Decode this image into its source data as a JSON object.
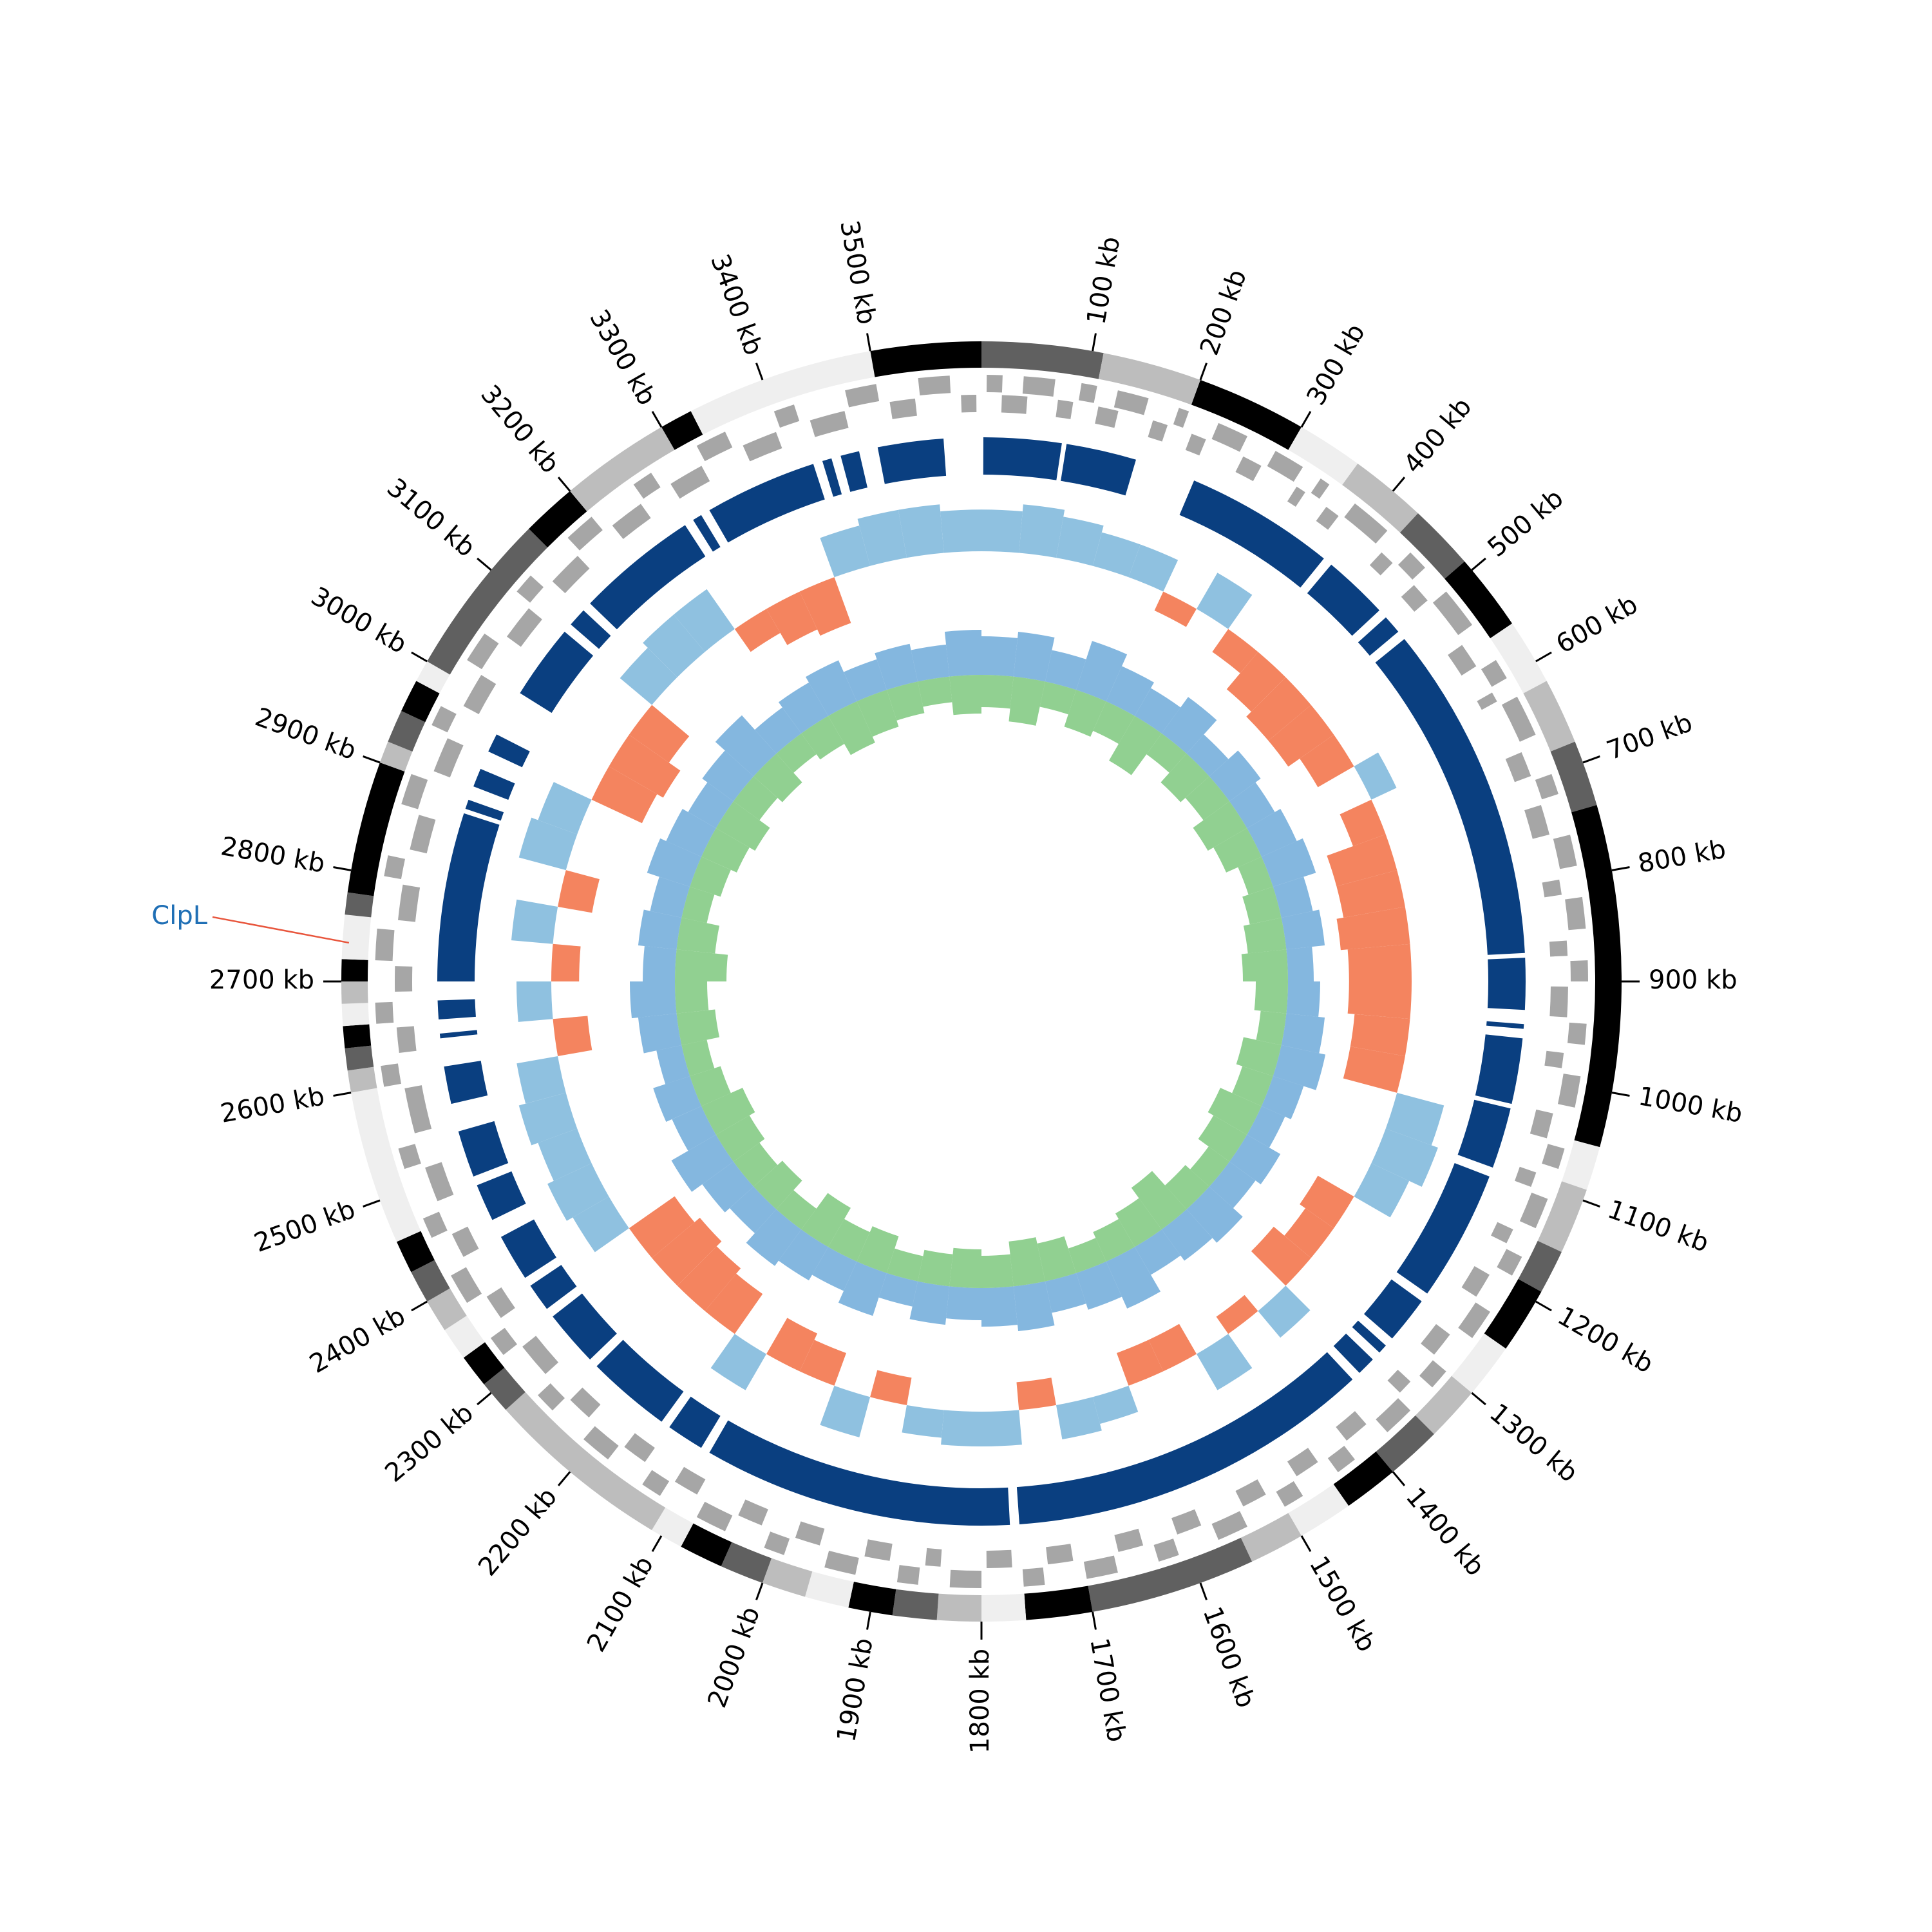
{
  "chart_data": {
    "type": "circos",
    "xlim": [
      0,
      3600
    ],
    "xticks": [
      {
        "value": 100,
        "label": "100 kb"
      },
      {
        "value": 200,
        "label": "200 kb"
      },
      {
        "value": 300,
        "label": "300 kb"
      },
      {
        "value": 400,
        "label": "400 kb"
      },
      {
        "value": 500,
        "label": "500 kb"
      },
      {
        "value": 600,
        "label": "600 kb"
      },
      {
        "value": 700,
        "label": "700 kb"
      },
      {
        "value": 800,
        "label": "800 kb"
      },
      {
        "value": 900,
        "label": "900 kb"
      },
      {
        "value": 1000,
        "label": "1000 kb"
      },
      {
        "value": 1100,
        "label": "1100 kb"
      },
      {
        "value": 1200,
        "label": "1200 kb"
      },
      {
        "value": 1300,
        "label": "1300 kb"
      },
      {
        "value": 1400,
        "label": "1400 kb"
      },
      {
        "value": 1500,
        "label": "1500 kb"
      },
      {
        "value": 1600,
        "label": "1600 kb"
      },
      {
        "value": 1700,
        "label": "1700 kb"
      },
      {
        "value": 1800,
        "label": "1800 kb"
      },
      {
        "value": 1900,
        "label": "1900 kb"
      },
      {
        "value": 2000,
        "label": "2000 kb"
      },
      {
        "value": 2100,
        "label": "2100 kb"
      },
      {
        "value": 2200,
        "label": "2200 kb"
      },
      {
        "value": 2300,
        "label": "2300 kb"
      },
      {
        "value": 2400,
        "label": "2400 kb"
      },
      {
        "value": 2500,
        "label": "2500 kb"
      },
      {
        "value": 2600,
        "label": "2600 kb"
      },
      {
        "value": 2700,
        "label": "2700 kb"
      },
      {
        "value": 2800,
        "label": "2800 kb"
      },
      {
        "value": 2900,
        "label": "2900 kb"
      },
      {
        "value": 3000,
        "label": "3000 kb"
      },
      {
        "value": 3100,
        "label": "3100 kb"
      },
      {
        "value": 3200,
        "label": "3200 kb"
      },
      {
        "value": 3300,
        "label": "3300 kb"
      },
      {
        "value": 3400,
        "label": "3400 kb"
      },
      {
        "value": 3500,
        "label": "3500 kb"
      }
    ],
    "ideogram": [
      [
        0,
        110,
        "#606060"
      ],
      [
        110,
        200,
        "#bdbdbd"
      ],
      [
        200,
        300,
        "#000000"
      ],
      [
        300,
        360,
        "#efefef"
      ],
      [
        360,
        430,
        "#bdbdbd"
      ],
      [
        430,
        490,
        "#606060"
      ],
      [
        490,
        560,
        "#000000"
      ],
      [
        560,
        620,
        "#efefef"
      ],
      [
        620,
        680,
        "#bdbdbd"
      ],
      [
        680,
        740,
        "#606060"
      ],
      [
        740,
        1050,
        "#000000"
      ],
      [
        1050,
        1090,
        "#efefef"
      ],
      [
        1090,
        1150,
        "#bdbdbd"
      ],
      [
        1150,
        1190,
        "#606060"
      ],
      [
        1190,
        1250,
        "#000000"
      ],
      [
        1250,
        1300,
        "#efefef"
      ],
      [
        1300,
        1350,
        "#bdbdbd"
      ],
      [
        1350,
        1400,
        "#606060"
      ],
      [
        1400,
        1450,
        "#000000"
      ],
      [
        1450,
        1500,
        "#efefef"
      ],
      [
        1500,
        1550,
        "#bdbdbd"
      ],
      [
        1550,
        1700,
        "#606060"
      ],
      [
        1700,
        1760,
        "#000000"
      ],
      [
        1760,
        1800,
        "#efefef"
      ],
      [
        1800,
        1840,
        "#bdbdbd"
      ],
      [
        1840,
        1880,
        "#606060"
      ],
      [
        1880,
        1920,
        "#000000"
      ],
      [
        1920,
        1960,
        "#efefef"
      ],
      [
        1960,
        2000,
        "#bdbdbd"
      ],
      [
        2000,
        2040,
        "#606060"
      ],
      [
        2040,
        2080,
        "#000000"
      ],
      [
        2080,
        2110,
        "#efefef"
      ],
      [
        2110,
        2280,
        "#bdbdbd"
      ],
      [
        2280,
        2310,
        "#606060"
      ],
      [
        2310,
        2340,
        "#000000"
      ],
      [
        2340,
        2370,
        "#efefef"
      ],
      [
        2370,
        2400,
        "#bdbdbd"
      ],
      [
        2400,
        2430,
        "#606060"
      ],
      [
        2430,
        2460,
        "#000000"
      ],
      [
        2460,
        2600,
        "#efefef"
      ],
      [
        2600,
        2620,
        "#bdbdbd"
      ],
      [
        2620,
        2640,
        "#606060"
      ],
      [
        2640,
        2660,
        "#000000"
      ],
      [
        2660,
        2680,
        "#efefef"
      ],
      [
        2680,
        2700,
        "#bdbdbd"
      ],
      [
        2700,
        2720,
        "#000000"
      ],
      [
        2720,
        2760,
        "#efefef"
      ],
      [
        2760,
        2780,
        "#606060"
      ],
      [
        2780,
        2900,
        "#000000"
      ],
      [
        2900,
        2920,
        "#bdbdbd"
      ],
      [
        2920,
        2950,
        "#606060"
      ],
      [
        2950,
        2980,
        "#000000"
      ],
      [
        2980,
        3000,
        "#efefef"
      ],
      [
        3000,
        3150,
        "#606060"
      ],
      [
        3150,
        3200,
        "#000000"
      ],
      [
        3200,
        3300,
        "#bdbdbd"
      ],
      [
        3300,
        3330,
        "#000000"
      ],
      [
        3330,
        3500,
        "#efefef"
      ],
      [
        3500,
        3600,
        "#000000"
      ]
    ],
    "gene_color": "#a6a6a6",
    "genes_plus": [
      [
        5,
        20
      ],
      [
        40,
        70
      ],
      [
        95,
        110
      ],
      [
        130,
        160
      ],
      [
        190,
        200
      ],
      [
        230,
        260
      ],
      [
        290,
        320
      ],
      [
        340,
        350
      ],
      [
        380,
        420
      ],
      [
        450,
        470
      ],
      [
        500,
        540
      ],
      [
        580,
        600
      ],
      [
        620,
        660
      ],
      [
        700,
        720
      ],
      [
        760,
        790
      ],
      [
        820,
        850
      ],
      [
        880,
        900
      ],
      [
        940,
        960
      ],
      [
        990,
        1020
      ],
      [
        1060,
        1080
      ],
      [
        1110,
        1140
      ],
      [
        1170,
        1190
      ],
      [
        1230,
        1260
      ],
      [
        1300,
        1320
      ],
      [
        1350,
        1380
      ],
      [
        1420,
        1440
      ],
      [
        1480,
        1500
      ],
      [
        1540,
        1570
      ],
      [
        1610,
        1630
      ],
      [
        1670,
        1700
      ],
      [
        1740,
        1760
      ],
      [
        1800,
        1830
      ],
      [
        1860,
        1880
      ],
      [
        1920,
        1950
      ],
      [
        1990,
        2010
      ],
      [
        2050,
        2080
      ],
      [
        2120,
        2140
      ],
      [
        2180,
        2210
      ],
      [
        2250,
        2270
      ],
      [
        2320,
        2340
      ],
      [
        2380,
        2410
      ],
      [
        2450,
        2470
      ],
      [
        2520,
        2540
      ],
      [
        2600,
        2620
      ],
      [
        2660,
        2680
      ],
      [
        2720,
        2750
      ],
      [
        2800,
        2820
      ],
      [
        2870,
        2900
      ],
      [
        2950,
        2970
      ],
      [
        3020,
        3050
      ],
      [
        3100,
        3120
      ],
      [
        3170,
        3200
      ],
      [
        3250,
        3270
      ],
      [
        3320,
        3350
      ],
      [
        3400,
        3420
      ],
      [
        3470,
        3500
      ],
      [
        3540,
        3570
      ]
    ],
    "genes_minus": [
      [
        20,
        45
      ],
      [
        75,
        90
      ],
      [
        115,
        135
      ],
      [
        170,
        185
      ],
      [
        210,
        225
      ],
      [
        265,
        285
      ],
      [
        325,
        335
      ],
      [
        360,
        375
      ],
      [
        430,
        445
      ],
      [
        475,
        495
      ],
      [
        550,
        575
      ],
      [
        605,
        615
      ],
      [
        670,
        695
      ],
      [
        725,
        755
      ],
      [
        800,
        815
      ],
      [
        860,
        875
      ],
      [
        905,
        935
      ],
      [
        970,
        985
      ],
      [
        1030,
        1055
      ],
      [
        1090,
        1105
      ],
      [
        1150,
        1165
      ],
      [
        1200,
        1225
      ],
      [
        1270,
        1295
      ],
      [
        1330,
        1345
      ],
      [
        1390,
        1415
      ],
      [
        1450,
        1475
      ],
      [
        1510,
        1535
      ],
      [
        1580,
        1605
      ],
      [
        1640,
        1665
      ],
      [
        1710,
        1735
      ],
      [
        1770,
        1795
      ],
      [
        1840,
        1855
      ],
      [
        1890,
        1915
      ],
      [
        1960,
        1985
      ],
      [
        2020,
        2045
      ],
      [
        2090,
        2115
      ],
      [
        2150,
        2175
      ],
      [
        2220,
        2245
      ],
      [
        2280,
        2315
      ],
      [
        2350,
        2375
      ],
      [
        2420,
        2445
      ],
      [
        2480,
        2515
      ],
      [
        2550,
        2595
      ],
      [
        2630,
        2655
      ],
      [
        2690,
        2715
      ],
      [
        2760,
        2795
      ],
      [
        2830,
        2865
      ],
      [
        2910,
        2945
      ],
      [
        2980,
        3015
      ],
      [
        3060,
        3095
      ],
      [
        3130,
        3165
      ],
      [
        3210,
        3245
      ],
      [
        3280,
        3315
      ],
      [
        3360,
        3395
      ],
      [
        3430,
        3465
      ],
      [
        3510,
        3535
      ],
      [
        3580,
        3595
      ]
    ],
    "block_color": "#0a3f80",
    "blocks": [
      [
        2,
        85
      ],
      [
        90,
        165
      ],
      [
        230,
        390
      ],
      [
        400,
        470
      ],
      [
        480,
        500
      ],
      [
        510,
        870
      ],
      [
        875,
        930
      ],
      [
        945,
        950
      ],
      [
        960,
        1030
      ],
      [
        1035,
        1100
      ],
      [
        1110,
        1250
      ],
      [
        1260,
        1310
      ],
      [
        1320,
        1330
      ],
      [
        1340,
        1360
      ],
      [
        1370,
        1760
      ],
      [
        1770,
        2100
      ],
      [
        2110,
        2150
      ],
      [
        2160,
        2250
      ],
      [
        2260,
        2320
      ],
      [
        2330,
        2360
      ],
      [
        2370,
        2420
      ],
      [
        2440,
        2480
      ],
      [
        2490,
        2540
      ],
      [
        2570,
        2610
      ],
      [
        2640,
        2645
      ],
      [
        2660,
        2680
      ],
      [
        2700,
        2880
      ],
      [
        2885,
        2895
      ],
      [
        2910,
        2930
      ],
      [
        2950,
        2970
      ],
      [
        3020,
        3100
      ],
      [
        3110,
        3130
      ],
      [
        3140,
        3270
      ],
      [
        3280,
        3290
      ],
      [
        3300,
        3420
      ],
      [
        3430,
        3440
      ],
      [
        3450,
        3470
      ],
      [
        3490,
        3560
      ]
    ],
    "skew": {
      "positive_color": "#8fc1e0",
      "negative_color": "#f4845f",
      "x": [
        0,
        50,
        100,
        150,
        200,
        250,
        300,
        350,
        400,
        450,
        500,
        550,
        600,
        650,
        700,
        750,
        800,
        850,
        900,
        950,
        1000,
        1050,
        1100,
        1150,
        1200,
        1250,
        1300,
        1350,
        1400,
        1450,
        1500,
        1550,
        1600,
        1650,
        1700,
        1750,
        1800,
        1850,
        1900,
        1950,
        2000,
        2050,
        2100,
        2150,
        2200,
        2250,
        2300,
        2350,
        2400,
        2450,
        2500,
        2550,
        2600,
        2650,
        2700,
        2750,
        2800,
        2850,
        2900,
        2950,
        3000,
        3050,
        3100,
        3150,
        3200,
        3250,
        3300,
        3350,
        3400,
        3450,
        3500,
        3550
      ],
      "values": [
        0.6,
        0.7,
        0.6,
        0.5,
        0.5,
        -0.3,
        0.6,
        -0.4,
        -0.7,
        -0.8,
        -0.8,
        -0.6,
        0.4,
        -0.5,
        -0.9,
        -0.9,
        -1.0,
        -0.9,
        -0.9,
        -0.8,
        -0.8,
        0.7,
        0.8,
        0.6,
        -0.6,
        -0.5,
        -0.7,
        0.5,
        -0.3,
        0.6,
        -0.5,
        -0.5,
        0.4,
        0.5,
        -0.4,
        0.5,
        0.5,
        0.4,
        -0.4,
        0.6,
        -0.5,
        -0.6,
        0.6,
        -0.7,
        -0.8,
        -0.9,
        -0.8,
        0.6,
        0.7,
        0.6,
        0.7,
        0.6,
        -0.5,
        0.5,
        -0.4,
        0.6,
        -0.5,
        0.7,
        0.6,
        -0.8,
        -0.9,
        -0.7,
        0.6,
        0.7,
        0.7,
        -0.4,
        -0.6,
        -0.7,
        0.6,
        0.7,
        0.7,
        0.6
      ]
    },
    "inner": {
      "x": [
        0,
        60,
        120,
        180,
        240,
        300,
        360,
        420,
        480,
        540,
        600,
        660,
        720,
        780,
        840,
        900,
        960,
        1020,
        1080,
        1140,
        1200,
        1260,
        1320,
        1380,
        1440,
        1500,
        1560,
        1620,
        1680,
        1740,
        1800,
        1860,
        1920,
        1980,
        2040,
        2100,
        2160,
        2220,
        2280,
        2340,
        2400,
        2460,
        2520,
        2580,
        2640,
        2700,
        2760,
        2820,
        2880,
        2940,
        3000,
        3060,
        3120,
        3180,
        3240,
        3300,
        3360,
        3420,
        3480,
        3540
      ],
      "series": [
        {
          "color": "#5b9fd4",
          "values": [
            0.6,
            0.7,
            0.5,
            0.8,
            0.6,
            0.5,
            0.7,
            0.4,
            0.6,
            0.5,
            0.6,
            0.7,
            0.5,
            0.6,
            0.4,
            0.5,
            0.6,
            0.7,
            0.5,
            0.4,
            0.6,
            0.5,
            0.7,
            0.6,
            0.5,
            0.8,
            0.6,
            0.5,
            0.7,
            0.6,
            0.5,
            0.6,
            0.4,
            0.7,
            0.5,
            0.6,
            0.7,
            0.5,
            0.6,
            0.8,
            0.5,
            0.6,
            0.4,
            0.6,
            0.7,
            0.5,
            0.6,
            0.5,
            0.7,
            0.6,
            0.5,
            0.6,
            0.8,
            0.5,
            0.6,
            0.7,
            0.5,
            0.6,
            0.5,
            0.7
          ]
        },
        {
          "color": "#6cc06c",
          "values": [
            -0.5,
            -0.7,
            -0.4,
            -0.6,
            -0.5,
            -0.8,
            -0.4,
            -0.6,
            -0.5,
            -0.7,
            -0.6,
            -0.4,
            -0.5,
            -0.6,
            -0.7,
            -0.5,
            -0.4,
            -0.6,
            -0.5,
            -0.7,
            -0.6,
            -0.4,
            -0.5,
            -0.8,
            -0.6,
            -0.5,
            -0.4,
            -0.6,
            -0.7,
            -0.5,
            -0.6,
            -0.5,
            -0.4,
            -0.6,
            -0.5,
            -0.7,
            -0.4,
            -0.6,
            -0.5,
            -0.6,
            -0.7,
            -0.5,
            -0.4,
            -0.6,
            -0.5,
            -0.8,
            -0.6,
            -0.4,
            -0.5,
            -0.6,
            -0.7,
            -0.5,
            -0.6,
            -0.4,
            -0.5,
            -0.7,
            -0.6,
            -0.5,
            -0.4,
            -0.6
          ]
        }
      ]
    },
    "annotation": {
      "text": "ClpL",
      "position": 2735,
      "color": "#1f6fb5",
      "line_color": "#e8553c"
    }
  }
}
